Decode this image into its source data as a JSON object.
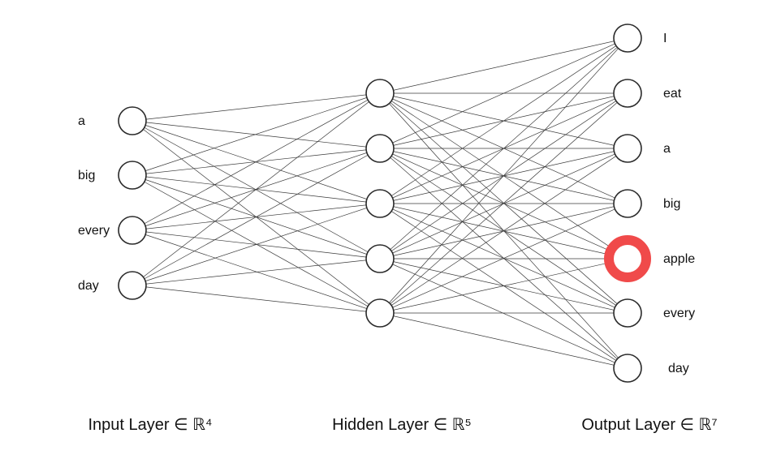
{
  "layers": [
    {
      "caption": "Input Layer ∈ ℝ⁴",
      "labels": [
        "a",
        "big",
        "every",
        "day"
      ]
    },
    {
      "caption": "Hidden Layer ∈ ℝ⁵",
      "labels": [],
      "count": 5
    },
    {
      "caption": "Output Layer ∈ ℝ⁷",
      "labels": [
        "I",
        "eat",
        "a",
        "big",
        "apple",
        "every",
        "day"
      ]
    }
  ],
  "highlighted_output": "apple",
  "colors": {
    "highlight": "#f04a4a",
    "stroke": "#2a2a2a",
    "edge": "#3a3a3a"
  }
}
